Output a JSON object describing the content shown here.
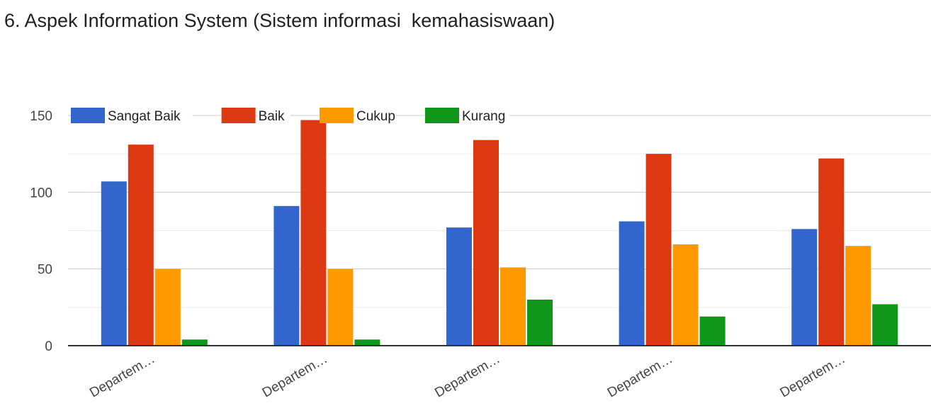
{
  "chart_data": {
    "type": "bar",
    "title": "6. Aspek Information System (Sistem informasi  kemahasiswaan)",
    "categories": [
      "Departem…",
      "Departem…",
      "Departem…",
      "Departem…",
      "Departem…"
    ],
    "series": [
      {
        "name": "Sangat Baik",
        "color": "#3366cc",
        "values": [
          107,
          91,
          77,
          81,
          76
        ]
      },
      {
        "name": "Baik",
        "color": "#dc3912",
        "values": [
          131,
          147,
          134,
          125,
          122
        ]
      },
      {
        "name": "Cukup",
        "color": "#ff9900",
        "values": [
          50,
          50,
          51,
          66,
          65
        ]
      },
      {
        "name": "Kurang",
        "color": "#109618",
        "values": [
          4,
          4,
          30,
          19,
          27
        ]
      }
    ],
    "ylim": [
      0,
      150
    ],
    "yticks": [
      0,
      50,
      100,
      150
    ],
    "grid": true,
    "legend_position": "top-left"
  }
}
